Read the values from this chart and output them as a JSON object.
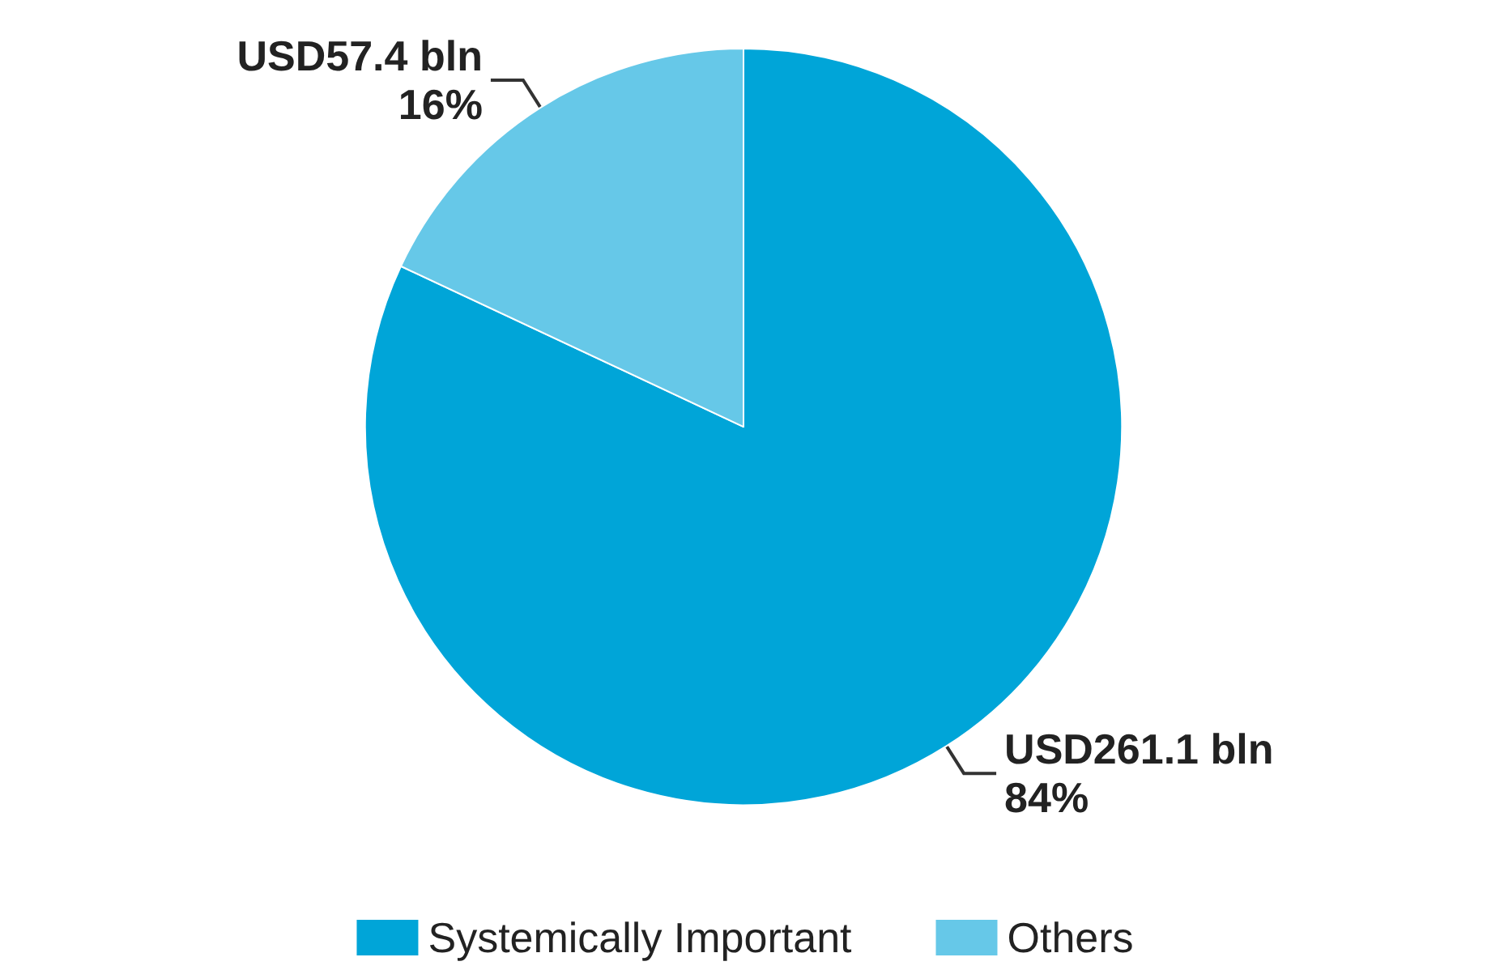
{
  "chart_data": {
    "type": "pie",
    "categories": [
      "Systemically Important",
      "Others"
    ],
    "values": [
      261.1,
      57.4
    ],
    "colors": [
      "#00a5d8",
      "#66c8e8"
    ],
    "value_labels": [
      "USD261.1 bln\n84%",
      "USD57.4 bln\n16%"
    ],
    "legend": "bottom"
  }
}
